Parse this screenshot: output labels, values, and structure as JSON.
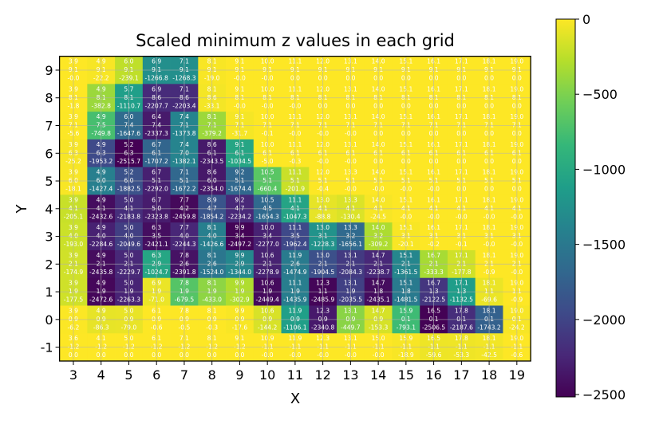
{
  "chart_data": {
    "type": "heatmap",
    "title": "Scaled minimum z values in each grid",
    "xlabel": "X",
    "ylabel": "Y",
    "x_ticks": [
      "3",
      "4",
      "5",
      "6",
      "7",
      "8",
      "9",
      "10",
      "11",
      "12",
      "13",
      "14",
      "15",
      "16",
      "17",
      "18",
      "19"
    ],
    "y_ticks": [
      "9",
      "8",
      "7",
      "6",
      "5",
      "4",
      "3",
      "2",
      "1",
      "0",
      "-1"
    ],
    "colormap": "viridis",
    "vmin": -2515.7,
    "vmax": 0,
    "colorbar": {
      "ticks": [
        0,
        -500,
        -1000,
        -1500,
        -2000,
        -2500
      ],
      "labels": [
        "0",
        "−500",
        "−1000",
        "−1500",
        "−2000",
        "−2500"
      ]
    },
    "grid": true,
    "cell_text_note": "each cell lists mean x, mean y, scaled min z",
    "rows": [
      {
        "y": 9,
        "x_mean": [
          "3.9",
          "4.9",
          "6.0",
          "6.9",
          "7.1",
          "8.1",
          "9.1",
          "10.0",
          "11.1",
          "12.0",
          "13.1",
          "14.0",
          "15.1",
          "16.1",
          "17.1",
          "18.1",
          "19.0"
        ],
        "y_mean": [
          "9.1",
          "9.1",
          "9.1",
          "9.1",
          "9.1",
          "9.1",
          "9.1",
          "9.1",
          "9.1",
          "9.1",
          "9.1",
          "9.1",
          "9.1",
          "9.1",
          "9.1",
          "9.1",
          "9.1"
        ],
        "z": [
          "-0.0",
          "-22.2",
          "-239.1",
          "-1266.8",
          "-1268.3",
          "-19.0",
          "-0.0",
          "-0.0",
          "0.0",
          "0.0",
          "0.0",
          "0.0",
          "0.0",
          "0.0",
          "0.0",
          "0.0",
          "0.0"
        ]
      },
      {
        "y": 8,
        "x_mean": [
          "3.9",
          "4.9",
          "5.7",
          "6.9",
          "7.1",
          "8.1",
          "9.1",
          "10.0",
          "11.1",
          "12.0",
          "13.1",
          "14.0",
          "15.1",
          "16.1",
          "17.1",
          "18.1",
          "19.0"
        ],
        "y_mean": [
          "8.1",
          "8.1",
          "8.1",
          "8.6",
          "8.6",
          "8.6",
          "8.1",
          "8.1",
          "8.1",
          "8.1",
          "8.1",
          "8.1",
          "8.1",
          "8.1",
          "8.1",
          "8.1",
          "8.1"
        ],
        "z": [
          "-1.8",
          "-382.8",
          "-1110.7",
          "-2207.7",
          "-2203.4",
          "-33.1",
          "-0.0",
          "-0.0",
          "-0.0",
          "0.0",
          "0.0",
          "0.0",
          "0.0",
          "0.0",
          "0.0",
          "0.0",
          "0.0"
        ]
      },
      {
        "y": 7,
        "x_mean": [
          "3.9",
          "4.9",
          "6.0",
          "6.4",
          "7.4",
          "8.1",
          "9.1",
          "10.0",
          "11.1",
          "12.0",
          "13.1",
          "14.0",
          "15.1",
          "16.1",
          "17.1",
          "18.1",
          "19.0"
        ],
        "y_mean": [
          "7.1",
          "7.5",
          "7.4",
          "7.4",
          "7.1",
          "7.1",
          "7.1",
          "7.1",
          "7.1",
          "7.1",
          "7.1",
          "7.1",
          "7.1",
          "7.1",
          "7.1",
          "7.1",
          "7.1"
        ],
        "z": [
          "-5.6",
          "-749.8",
          "-1647.6",
          "-2337.3",
          "-1373.8",
          "-379.2",
          "-31.7",
          "-0.1",
          "-0.0",
          "-0.0",
          "-0.0",
          "0.0",
          "0.0",
          "0.0",
          "0.0",
          "0.0",
          "0.0"
        ]
      },
      {
        "y": 6,
        "x_mean": [
          "3.9",
          "4.9",
          "5.2",
          "6.7",
          "7.4",
          "8.6",
          "9.1",
          "10.0",
          "11.1",
          "12.0",
          "13.1",
          "14.0",
          "15.1",
          "16.1",
          "17.1",
          "18.1",
          "19.0"
        ],
        "y_mean": [
          "6.3",
          "6.3",
          "6.3",
          "6.1",
          "7.0",
          "6.1",
          "6.1",
          "6.1",
          "6.1",
          "6.1",
          "6.1",
          "6.1",
          "6.1",
          "6.1",
          "6.1",
          "6.1",
          "6.1"
        ],
        "z": [
          "-25.2",
          "-1953.2",
          "-2515.7",
          "-1707.2",
          "-1382.1",
          "-2343.5",
          "-1034.5",
          "-5.0",
          "-0.3",
          "-0.0",
          "-0.0",
          "0.0",
          "0.0",
          "0.0",
          "0.0",
          "0.0",
          "0.0"
        ]
      },
      {
        "y": 5,
        "x_mean": [
          "3.9",
          "4.9",
          "5.2",
          "6.7",
          "7.1",
          "8.6",
          "9.2",
          "10.5",
          "11.1",
          "12.0",
          "13.3",
          "14.0",
          "15.1",
          "16.1",
          "17.1",
          "18.1",
          "19.0"
        ],
        "y_mean": [
          "6.0",
          "6.0",
          "6.0",
          "5.1",
          "5.1",
          "6.0",
          "5.1",
          "5.1",
          "5.1",
          "5.1",
          "5.1",
          "5.1",
          "5.1",
          "5.1",
          "5.1",
          "5.1",
          "5.1"
        ],
        "z": [
          "-18.1",
          "-1427.4",
          "-1882.5",
          "-2292.0",
          "-1672.2",
          "-2354.0",
          "-1674.4",
          "-660.4",
          "-201.9",
          "-0.4",
          "-0.0",
          "-0.0",
          "-0.0",
          "-0.0",
          "0.0",
          "0.0",
          "0.0"
        ]
      },
      {
        "y": 4,
        "x_mean": [
          "3.9",
          "4.9",
          "5.0",
          "6.7",
          "7.7",
          "8.9",
          "9.2",
          "10.5",
          "11.1",
          "13.0",
          "13.3",
          "14.0",
          "15.1",
          "16.1",
          "17.1",
          "18.1",
          "19.0"
        ],
        "y_mean": [
          "4.1",
          "4.1",
          "4.1",
          "5.0",
          "4.2",
          "4.7",
          "4.7",
          "4.5",
          "4.1",
          "4.1",
          "4.1",
          "4.1",
          "4.1",
          "4.1",
          "4.1",
          "4.1",
          "4.1"
        ],
        "z": [
          "-205.1",
          "-2432.6",
          "-2183.8",
          "-2323.8",
          "-2459.8",
          "-1854.2",
          "-2234.2",
          "-1654.3",
          "-1047.3",
          "-88.8",
          "-130.4",
          "-24.5",
          "-0.0",
          "-0.0",
          "-0.0",
          "-0.0",
          "-0.0"
        ]
      },
      {
        "y": 3,
        "x_mean": [
          "3.9",
          "4.9",
          "5.0",
          "6.3",
          "7.7",
          "8.1",
          "9.9",
          "10.0",
          "11.1",
          "13.0",
          "13.3",
          "14.0",
          "15.1",
          "16.1",
          "17.1",
          "18.1",
          "19.0"
        ],
        "y_mean": [
          "4.0",
          "4.0",
          "4.0",
          "3.5",
          "4.0",
          "4.0",
          "3.4",
          "3.4",
          "3.5",
          "3.1",
          "3.2",
          "3.2",
          "3.1",
          "3.1",
          "3.1",
          "3.1",
          "3.1"
        ],
        "z": [
          "-193.0",
          "-2284.6",
          "-2049.6",
          "-2421.1",
          "-2244.3",
          "-1426.6",
          "-2497.2",
          "-2277.0",
          "-1962.4",
          "-1228.3",
          "-1656.1",
          "-309.2",
          "-20.1",
          "-0.2",
          "-0.1",
          "-0.0",
          "-0.0"
        ]
      },
      {
        "y": 2,
        "x_mean": [
          "3.9",
          "4.9",
          "5.0",
          "6.3",
          "7.8",
          "8.1",
          "9.9",
          "10.6",
          "11.9",
          "13.0",
          "13.1",
          "14.7",
          "15.1",
          "16.7",
          "17.1",
          "18.1",
          "19.0"
        ],
        "y_mean": [
          "2.1",
          "2.1",
          "2.1",
          "2.9",
          "2.6",
          "2.6",
          "2.9",
          "2.1",
          "2.6",
          "2.1",
          "2.1",
          "2.1",
          "2.1",
          "2.1",
          "2.1",
          "2.1",
          "2.1"
        ],
        "z": [
          "-174.9",
          "-2435.8",
          "-2229.7",
          "-1024.7",
          "-2391.8",
          "-1524.0",
          "-1344.0",
          "-2278.9",
          "-1474.9",
          "-1904.5",
          "-2084.3",
          "-2238.7",
          "-1361.5",
          "-333.3",
          "-177.8",
          "-0.9",
          "-0.0"
        ]
      },
      {
        "y": 1,
        "x_mean": [
          "3.9",
          "4.9",
          "5.0",
          "6.9",
          "7.8",
          "8.1",
          "9.9",
          "10.6",
          "11.1",
          "12.3",
          "13.1",
          "14.7",
          "15.1",
          "16.7",
          "17.1",
          "18.1",
          "19.0"
        ],
        "y_mean": [
          "1.9",
          "1.9",
          "1.9",
          "1.9",
          "1.9",
          "1.9",
          "1.9",
          "1.9",
          "1.9",
          "1.1",
          "1.9",
          "1.8",
          "1.8",
          "1.3",
          "1.3",
          "1.1",
          "1.1"
        ],
        "z": [
          "-177.5",
          "-2472.6",
          "-2263.3",
          "-71.0",
          "-679.5",
          "-433.0",
          "-302.9",
          "-2449.4",
          "-1435.9",
          "-2485.9",
          "-2035.5",
          "-2435.1",
          "-1481.5",
          "-2122.5",
          "-1132.5",
          "-69.6",
          "-0.9"
        ]
      },
      {
        "y": 0,
        "x_mean": [
          "3.9",
          "4.9",
          "5.0",
          "6.1",
          "7.8",
          "8.1",
          "9.9",
          "10.6",
          "11.9",
          "12.3",
          "13.1",
          "14.7",
          "15.9",
          "16.5",
          "17.8",
          "18.1",
          "19.0"
        ],
        "y_mean": [
          "0.9",
          "0.9",
          "0.9",
          "0.9",
          "0.9",
          "0.9",
          "0.9",
          "0.9",
          "0.9",
          "0.9",
          "0.9",
          "0.9",
          "0.1",
          "0.1",
          "0.1",
          "0.1",
          "0.1"
        ],
        "z": [
          "-6.2",
          "-86.3",
          "-79.0",
          "-0.6",
          "-0.5",
          "-0.3",
          "-17.6",
          "-144.2",
          "-1106.1",
          "-2340.8",
          "-449.7",
          "-153.3",
          "-793.1",
          "-2506.5",
          "-2187.6",
          "-1743.2",
          "-24.2"
        ]
      },
      {
        "y": -1,
        "x_mean": [
          "3.6",
          "4.1",
          "5.0",
          "6.1",
          "7.1",
          "8.1",
          "9.1",
          "10.9",
          "11.9",
          "12.3",
          "13.1",
          "15.0",
          "15.9",
          "16.5",
          "17.8",
          "18.1",
          "19.0"
        ],
        "y_mean": [
          "-1.2",
          "-1.2",
          "-1.2",
          "-1.2",
          "-1.2",
          "-1.2",
          "-1.2",
          "-1.1",
          "-1.1",
          "-1.1",
          "-1.1",
          "-1.1",
          "-1.1",
          "-1.1",
          "-1.1",
          "-1.1",
          "-1.1"
        ],
        "z": [
          "0.0",
          "0.0",
          "0.0",
          "0.0",
          "0.0",
          "0.0",
          "0.0",
          "-0.0",
          "-0.0",
          "-0.0",
          "-0.0",
          "-0.0",
          "-18.9",
          "-59.6",
          "-53.3",
          "-42.5",
          "-0.6"
        ]
      }
    ]
  }
}
